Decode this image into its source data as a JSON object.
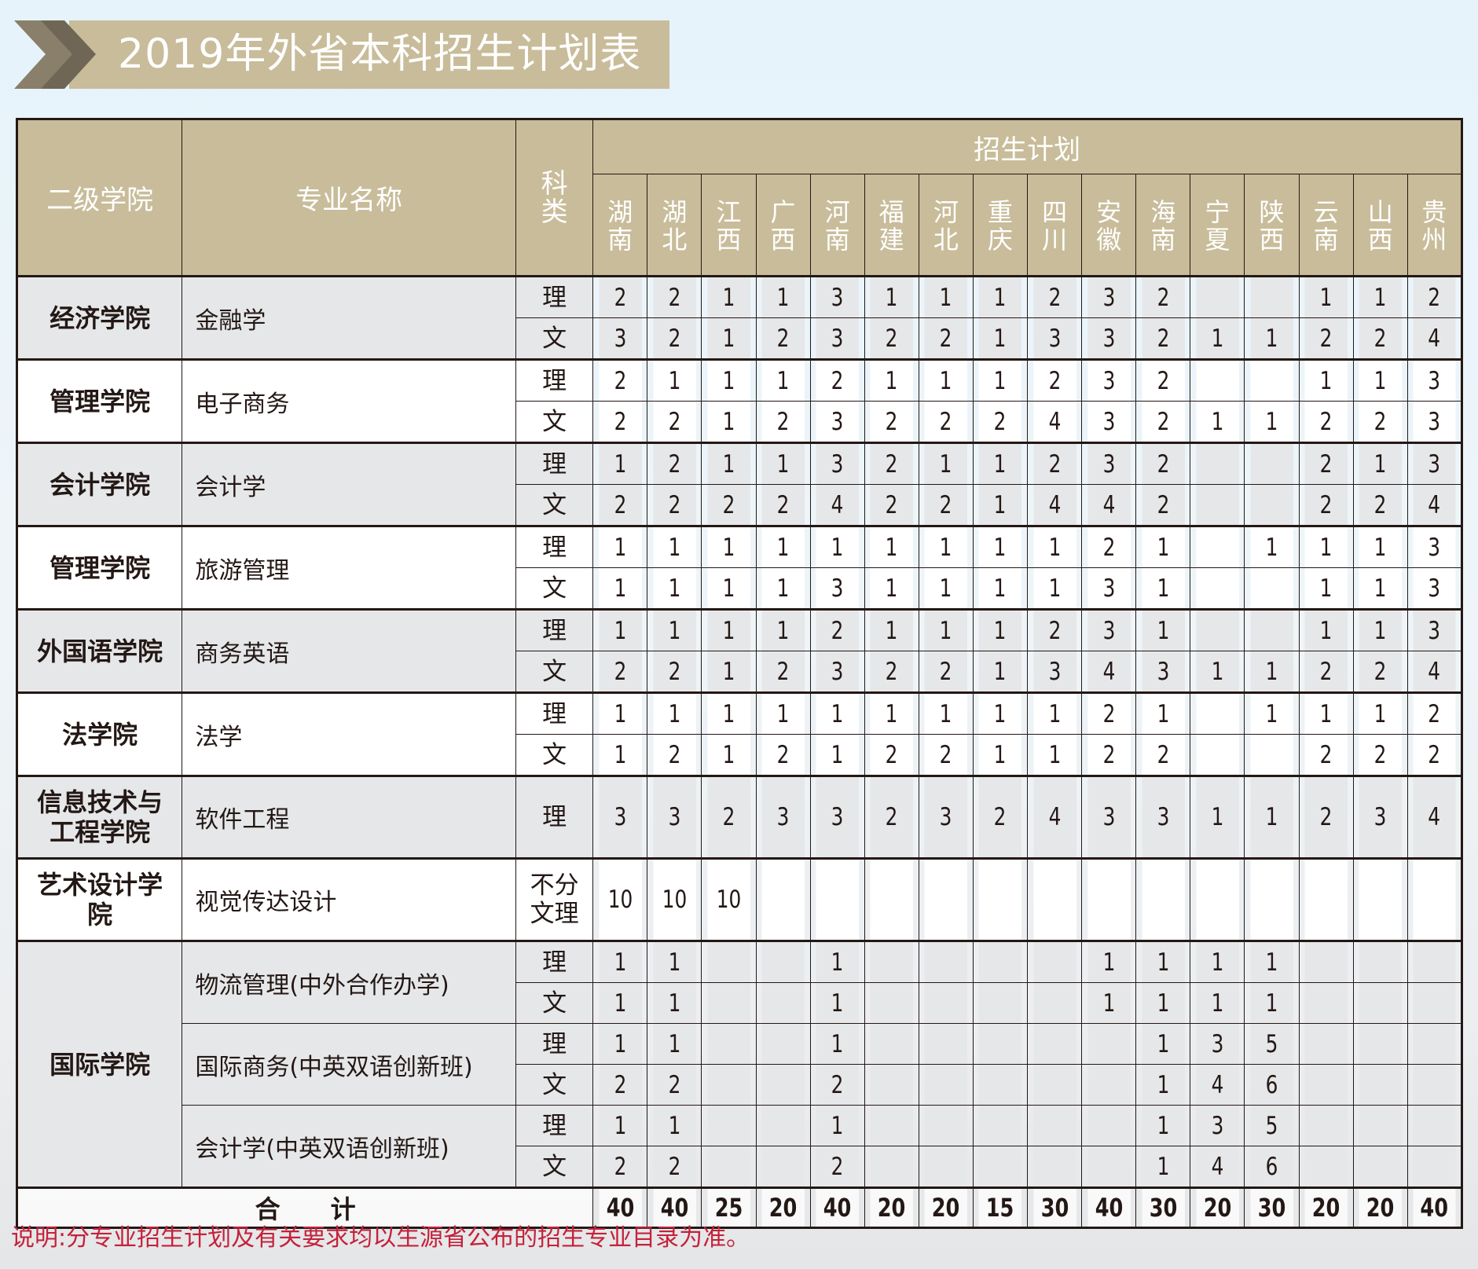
{
  "title": "2019年外省本科招生计划表",
  "colors": {
    "header_bg": "#c8bc9a",
    "row_gray": "#e6e7e9",
    "note_text": "#c5213a"
  },
  "header": {
    "college": "二级学院",
    "major": "专业名称",
    "kind": "科类",
    "plan": "招生计划",
    "provinces": [
      "湖南",
      "湖北",
      "江西",
      "广西",
      "河南",
      "福建",
      "河北",
      "重庆",
      "四川",
      "安徽",
      "海南",
      "宁夏",
      "陕西",
      "云南",
      "山西",
      "贵州"
    ]
  },
  "groups": [
    {
      "college": "经济学院",
      "majors": [
        {
          "name": "金融学",
          "rows": [
            {
              "kind": "理",
              "values": [
                "2",
                "2",
                "1",
                "1",
                "3",
                "1",
                "1",
                "1",
                "2",
                "3",
                "2",
                "",
                "",
                "1",
                "1",
                "2"
              ]
            },
            {
              "kind": "文",
              "values": [
                "3",
                "2",
                "1",
                "2",
                "3",
                "2",
                "2",
                "1",
                "3",
                "3",
                "2",
                "1",
                "1",
                "2",
                "2",
                "4"
              ]
            }
          ]
        }
      ]
    },
    {
      "college": "管理学院",
      "majors": [
        {
          "name": "电子商务",
          "rows": [
            {
              "kind": "理",
              "values": [
                "2",
                "1",
                "1",
                "1",
                "2",
                "1",
                "1",
                "1",
                "2",
                "3",
                "2",
                "",
                "",
                "1",
                "1",
                "3"
              ]
            },
            {
              "kind": "文",
              "values": [
                "2",
                "2",
                "1",
                "2",
                "3",
                "2",
                "2",
                "2",
                "4",
                "3",
                "2",
                "1",
                "1",
                "2",
                "2",
                "3"
              ]
            }
          ]
        }
      ]
    },
    {
      "college": "会计学院",
      "majors": [
        {
          "name": "会计学",
          "rows": [
            {
              "kind": "理",
              "values": [
                "1",
                "2",
                "1",
                "1",
                "3",
                "2",
                "1",
                "1",
                "2",
                "3",
                "2",
                "",
                "",
                "2",
                "1",
                "3"
              ]
            },
            {
              "kind": "文",
              "values": [
                "2",
                "2",
                "2",
                "2",
                "4",
                "2",
                "2",
                "1",
                "4",
                "4",
                "2",
                "",
                "",
                "2",
                "2",
                "4"
              ]
            }
          ]
        }
      ]
    },
    {
      "college": "管理学院",
      "majors": [
        {
          "name": "旅游管理",
          "rows": [
            {
              "kind": "理",
              "values": [
                "1",
                "1",
                "1",
                "1",
                "1",
                "1",
                "1",
                "1",
                "1",
                "2",
                "1",
                "",
                "1",
                "1",
                "1",
                "3"
              ]
            },
            {
              "kind": "文",
              "values": [
                "1",
                "1",
                "1",
                "1",
                "3",
                "1",
                "1",
                "1",
                "1",
                "3",
                "1",
                "",
                "",
                "1",
                "1",
                "3"
              ]
            }
          ]
        }
      ]
    },
    {
      "college": "外国语学院",
      "majors": [
        {
          "name": "商务英语",
          "rows": [
            {
              "kind": "理",
              "values": [
                "1",
                "1",
                "1",
                "1",
                "2",
                "1",
                "1",
                "1",
                "2",
                "3",
                "1",
                "",
                "",
                "1",
                "1",
                "3"
              ]
            },
            {
              "kind": "文",
              "values": [
                "2",
                "2",
                "1",
                "2",
                "3",
                "2",
                "2",
                "1",
                "3",
                "4",
                "3",
                "1",
                "1",
                "2",
                "2",
                "4"
              ]
            }
          ]
        }
      ]
    },
    {
      "college": "法学院",
      "majors": [
        {
          "name": "法学",
          "rows": [
            {
              "kind": "理",
              "values": [
                "1",
                "1",
                "1",
                "1",
                "1",
                "1",
                "1",
                "1",
                "1",
                "2",
                "1",
                "",
                "1",
                "1",
                "1",
                "2"
              ]
            },
            {
              "kind": "文",
              "values": [
                "1",
                "2",
                "1",
                "2",
                "1",
                "2",
                "2",
                "1",
                "1",
                "2",
                "2",
                "",
                "",
                "2",
                "2",
                "2"
              ]
            }
          ]
        }
      ]
    },
    {
      "college": "信息技术与工程学院",
      "tall": true,
      "majors": [
        {
          "name": "软件工程",
          "rows": [
            {
              "kind": "理",
              "values": [
                "3",
                "3",
                "2",
                "3",
                "3",
                "2",
                "3",
                "2",
                "4",
                "3",
                "3",
                "1",
                "1",
                "2",
                "3",
                "4"
              ]
            }
          ]
        }
      ]
    },
    {
      "college": "艺术设计学院",
      "tall": true,
      "majors": [
        {
          "name": "视觉传达设计",
          "rows": [
            {
              "kind": "不分文理",
              "values": [
                "10",
                "10",
                "10",
                "",
                "",
                "",
                "",
                "",
                "",
                "",
                "",
                "",
                "",
                "",
                "",
                ""
              ]
            }
          ]
        }
      ]
    },
    {
      "college": "国际学院",
      "majors": [
        {
          "name": "物流管理(中外合作办学)",
          "rows": [
            {
              "kind": "理",
              "values": [
                "1",
                "1",
                "",
                "",
                "1",
                "",
                "",
                "",
                "",
                "1",
                "1",
                "1",
                "1",
                "",
                "",
                ""
              ]
            },
            {
              "kind": "文",
              "values": [
                "1",
                "1",
                "",
                "",
                "1",
                "",
                "",
                "",
                "",
                "1",
                "1",
                "1",
                "1",
                "",
                "",
                ""
              ]
            }
          ]
        },
        {
          "name": "国际商务(中英双语创新班)",
          "rows": [
            {
              "kind": "理",
              "values": [
                "1",
                "1",
                "",
                "",
                "1",
                "",
                "",
                "",
                "",
                "",
                "1",
                "3",
                "5",
                "",
                "",
                ""
              ]
            },
            {
              "kind": "文",
              "values": [
                "2",
                "2",
                "",
                "",
                "2",
                "",
                "",
                "",
                "",
                "",
                "1",
                "4",
                "6",
                "",
                "",
                ""
              ]
            }
          ]
        },
        {
          "name": "会计学(中英双语创新班)",
          "rows": [
            {
              "kind": "理",
              "values": [
                "1",
                "1",
                "",
                "",
                "1",
                "",
                "",
                "",
                "",
                "",
                "1",
                "3",
                "5",
                "",
                "",
                ""
              ]
            },
            {
              "kind": "文",
              "values": [
                "2",
                "2",
                "",
                "",
                "2",
                "",
                "",
                "",
                "",
                "",
                "1",
                "4",
                "6",
                "",
                "",
                ""
              ]
            }
          ]
        }
      ]
    }
  ],
  "total": {
    "label": "合　　计",
    "values": [
      "40",
      "40",
      "25",
      "20",
      "40",
      "20",
      "20",
      "15",
      "30",
      "40",
      "30",
      "20",
      "30",
      "20",
      "20",
      "40"
    ]
  },
  "note": "说明:分专业招生计划及有关要求均以生源省公布的招生专业目录为准。"
}
